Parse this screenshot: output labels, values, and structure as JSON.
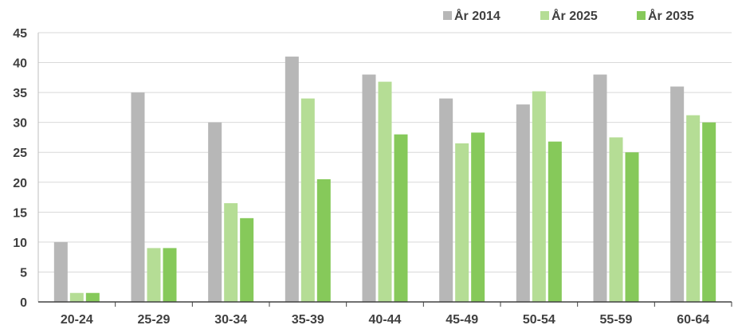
{
  "chart_data": {
    "type": "bar",
    "categories": [
      "20-24",
      "25-29",
      "30-34",
      "35-39",
      "40-44",
      "45-49",
      "50-54",
      "55-59",
      "60-64"
    ],
    "series": [
      {
        "name": "År 2014",
        "color": "#b7b7b7",
        "values": [
          10,
          35,
          30,
          41,
          38,
          34,
          33,
          38,
          36
        ]
      },
      {
        "name": "År 2025",
        "color": "#b5dd95",
        "values": [
          1.5,
          9,
          16.5,
          34,
          36.8,
          26.5,
          35.2,
          27.5,
          31.2
        ]
      },
      {
        "name": "År 2035",
        "color": "#86c95a",
        "values": [
          1.5,
          9,
          14,
          20.5,
          28,
          28.3,
          26.8,
          25,
          30
        ]
      }
    ],
    "title": "",
    "xlabel": "",
    "ylabel": "",
    "ylim": [
      0,
      45
    ],
    "yticks": [
      "0",
      "5",
      "10",
      "15",
      "20",
      "25",
      "30",
      "35",
      "40",
      "45"
    ],
    "grid": true,
    "legend_position": "top-right"
  }
}
